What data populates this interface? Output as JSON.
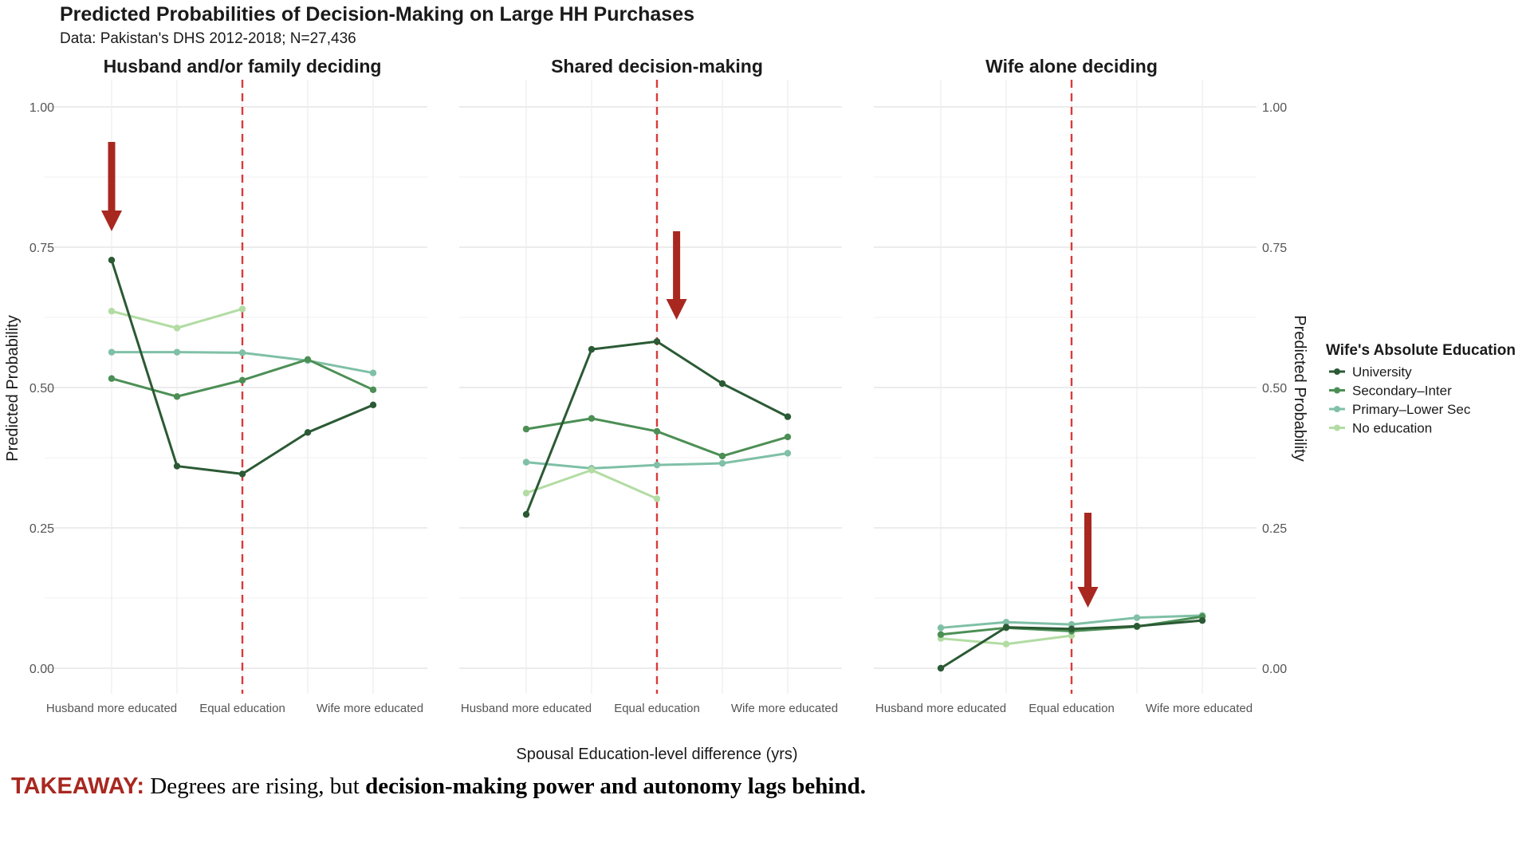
{
  "chart_data": {
    "type": "line",
    "title": "Predicted Probabilities of Decision-Making on Large HH Purchases",
    "subtitle": "Data: Pakistan's DHS 2012-2018; N=27,436",
    "xlabel": "Spousal Education-level difference (yrs)",
    "ylabel": "Predicted Probability",
    "ylim": [
      0,
      1
    ],
    "yticks": [
      "0.00",
      "0.25",
      "0.50",
      "0.75",
      "1.00"
    ],
    "xtick_labels": [
      "Husband more educated",
      "Equal education",
      "Wife more educated"
    ],
    "x_positions": 5,
    "reference_line": "Equal education",
    "grid": true,
    "legend": {
      "title": "Wife's Absolute Education",
      "placement": "right",
      "entries": [
        "University",
        "Secondary–Inter",
        "Primary–Lower Sec",
        "No education"
      ]
    },
    "colors": {
      "University": "#2b5a34",
      "Secondary–Inter": "#4c8f55",
      "Primary–Lower Sec": "#7fc0a6",
      "No education": "#b2dca3",
      "reference": "#d93a3a",
      "arrow": "#a82820"
    },
    "panels": [
      {
        "title": "Husband and/or family deciding",
        "arrow_at_x": 0,
        "series": [
          {
            "name": "University",
            "values": [
              0.727,
              0.36,
              0.346,
              0.42,
              0.469
            ]
          },
          {
            "name": "Secondary–Inter",
            "values": [
              0.516,
              0.484,
              0.513,
              0.55,
              0.496
            ]
          },
          {
            "name": "Primary–Lower Sec",
            "values": [
              0.563,
              0.563,
              0.562,
              0.548,
              0.526
            ]
          },
          {
            "name": "No education",
            "values": [
              0.636,
              0.606,
              0.64,
              null,
              null
            ]
          }
        ]
      },
      {
        "title": "Shared decision-making",
        "arrow_at_x": 2.3,
        "series": [
          {
            "name": "University",
            "values": [
              0.274,
              0.568,
              0.582,
              0.507,
              0.448
            ]
          },
          {
            "name": "Secondary–Inter",
            "values": [
              0.426,
              0.445,
              0.422,
              0.378,
              0.412
            ]
          },
          {
            "name": "Primary–Lower Sec",
            "values": [
              0.367,
              0.356,
              0.362,
              0.365,
              0.383
            ]
          },
          {
            "name": "No education",
            "values": [
              0.312,
              0.353,
              0.302,
              null,
              null
            ]
          }
        ]
      },
      {
        "title": "Wife alone deciding",
        "arrow_at_x": 2.25,
        "series": [
          {
            "name": "University",
            "values": [
              0.0,
              0.073,
              0.07,
              0.075,
              0.085
            ]
          },
          {
            "name": "Secondary–Inter",
            "values": [
              0.06,
              0.072,
              0.066,
              0.074,
              0.092
            ]
          },
          {
            "name": "Primary–Lower Sec",
            "values": [
              0.072,
              0.082,
              0.078,
              0.09,
              0.094
            ]
          },
          {
            "name": "No education",
            "values": [
              0.053,
              0.043,
              0.058,
              null,
              null
            ]
          }
        ]
      }
    ]
  },
  "takeaway": {
    "label": "TAKEAWAY:",
    "text": " Degrees are rising, but ",
    "emphasis": "decision-making power and autonomy lags behind."
  }
}
